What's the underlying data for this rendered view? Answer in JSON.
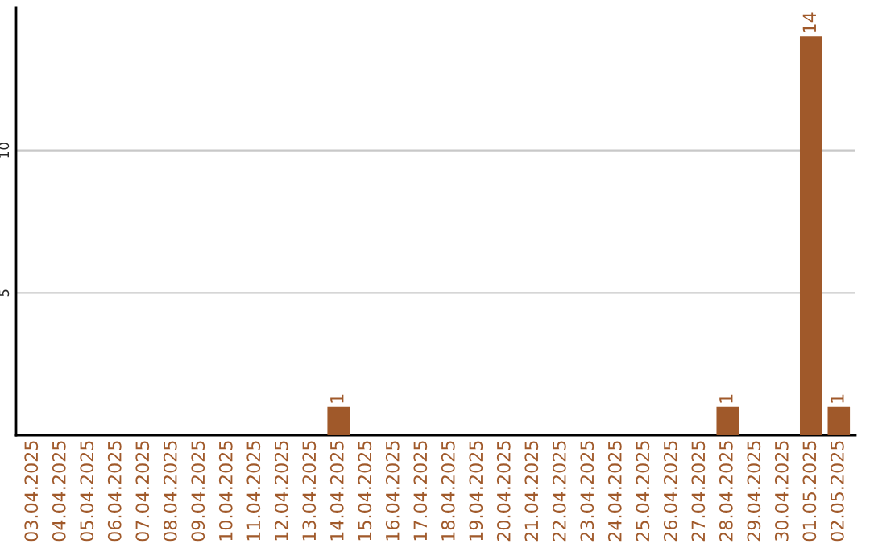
{
  "chart_data": {
    "type": "bar",
    "categories": [
      "03.04.2025",
      "04.04.2025",
      "05.04.2025",
      "06.04.2025",
      "07.04.2025",
      "08.04.2025",
      "09.04.2025",
      "10.04.2025",
      "11.04.2025",
      "12.04.2025",
      "13.04.2025",
      "14.04.2025",
      "15.04.2025",
      "16.04.2025",
      "17.04.2025",
      "18.04.2025",
      "19.04.2025",
      "20.04.2025",
      "21.04.2025",
      "22.04.2025",
      "23.04.2025",
      "24.04.2025",
      "25.04.2025",
      "26.04.2025",
      "27.04.2025",
      "28.04.2025",
      "29.04.2025",
      "30.04.2025",
      "01.05.2025",
      "02.05.2025"
    ],
    "values": [
      0,
      0,
      0,
      0,
      0,
      0,
      0,
      0,
      0,
      0,
      0,
      1,
      0,
      0,
      0,
      0,
      0,
      0,
      0,
      0,
      0,
      0,
      0,
      0,
      0,
      1,
      0,
      0,
      14,
      1
    ],
    "value_labels": [
      null,
      null,
      null,
      null,
      null,
      null,
      null,
      null,
      null,
      null,
      null,
      "1",
      null,
      null,
      null,
      null,
      null,
      null,
      null,
      null,
      null,
      null,
      null,
      null,
      null,
      "1",
      null,
      null,
      "14",
      "1"
    ],
    "color": "#a0592a",
    "ylim": [
      0,
      15
    ],
    "yticks": [
      5,
      10
    ],
    "grid": "y"
  }
}
